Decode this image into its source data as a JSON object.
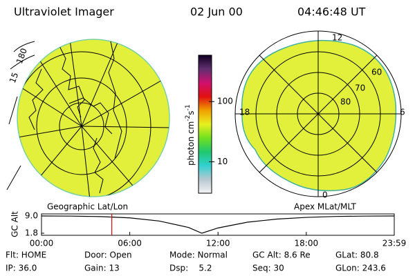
{
  "header": {
    "title": "Ultraviolet Imager",
    "date": "02 Jun 00",
    "time": "04:46:48 UT"
  },
  "geographic_image": {
    "caption": "Geographic Lat/Lon",
    "edge_labels": [
      "15",
      "180"
    ]
  },
  "magnetic_image": {
    "caption": "Apex MLat/MLT",
    "mlt_labels": [
      "12",
      "18",
      "6",
      "0"
    ],
    "mlat_labels": [
      "60",
      "70",
      "80"
    ]
  },
  "colorbar": {
    "label": [
      "photon cm",
      "-2",
      "s",
      "-1"
    ],
    "log": true,
    "lim": [
      3,
      590
    ],
    "ticks": [
      10,
      100
    ],
    "colors": [
      "#f4f4f4",
      "#b8c8d0",
      "#30d0d0",
      "#20c870",
      "#70e020",
      "#e8f020",
      "#f0a000",
      "#e01010",
      "#d01070",
      "#603070",
      "#100020"
    ]
  },
  "altitude_plot": {
    "ylabel": "GC Alt",
    "ylim": [
      1.8,
      9.0
    ],
    "yticks": [
      {
        "value": 9.0,
        "label": "9.0"
      },
      {
        "value": 1.8,
        "label": "1.8"
      }
    ],
    "xlim": [
      0,
      23.98
    ],
    "xticks": [
      {
        "value": 0,
        "label": "00:00"
      },
      {
        "value": 6,
        "label": "06:00"
      },
      {
        "value": 12,
        "label": "12:00"
      },
      {
        "value": 18,
        "label": "18:00"
      },
      {
        "value": 23.98,
        "label": "23:59"
      }
    ],
    "x": [
      0,
      2,
      4,
      6,
      8,
      10,
      10.9,
      12,
      14,
      16,
      18,
      20,
      22,
      23.98
    ],
    "values": [
      9.0,
      8.95,
      8.75,
      8.2,
      6.9,
      4.2,
      1.8,
      4.0,
      6.4,
      7.7,
      8.4,
      8.8,
      8.95,
      9.0
    ],
    "marker": 4.78,
    "marker_color": "#e00000"
  },
  "status": {
    "rows": [
      [
        "Flt: HOME",
        "Door: Open",
        "Mode: Normal",
        "GC Alt: 8.6 Re",
        "GLat: 80.8"
      ],
      [
        "IP: 36.0",
        "Gain: 13",
        "Dsp:    5.2",
        "Seq: 30",
        "GLon: 243.6"
      ]
    ]
  }
}
